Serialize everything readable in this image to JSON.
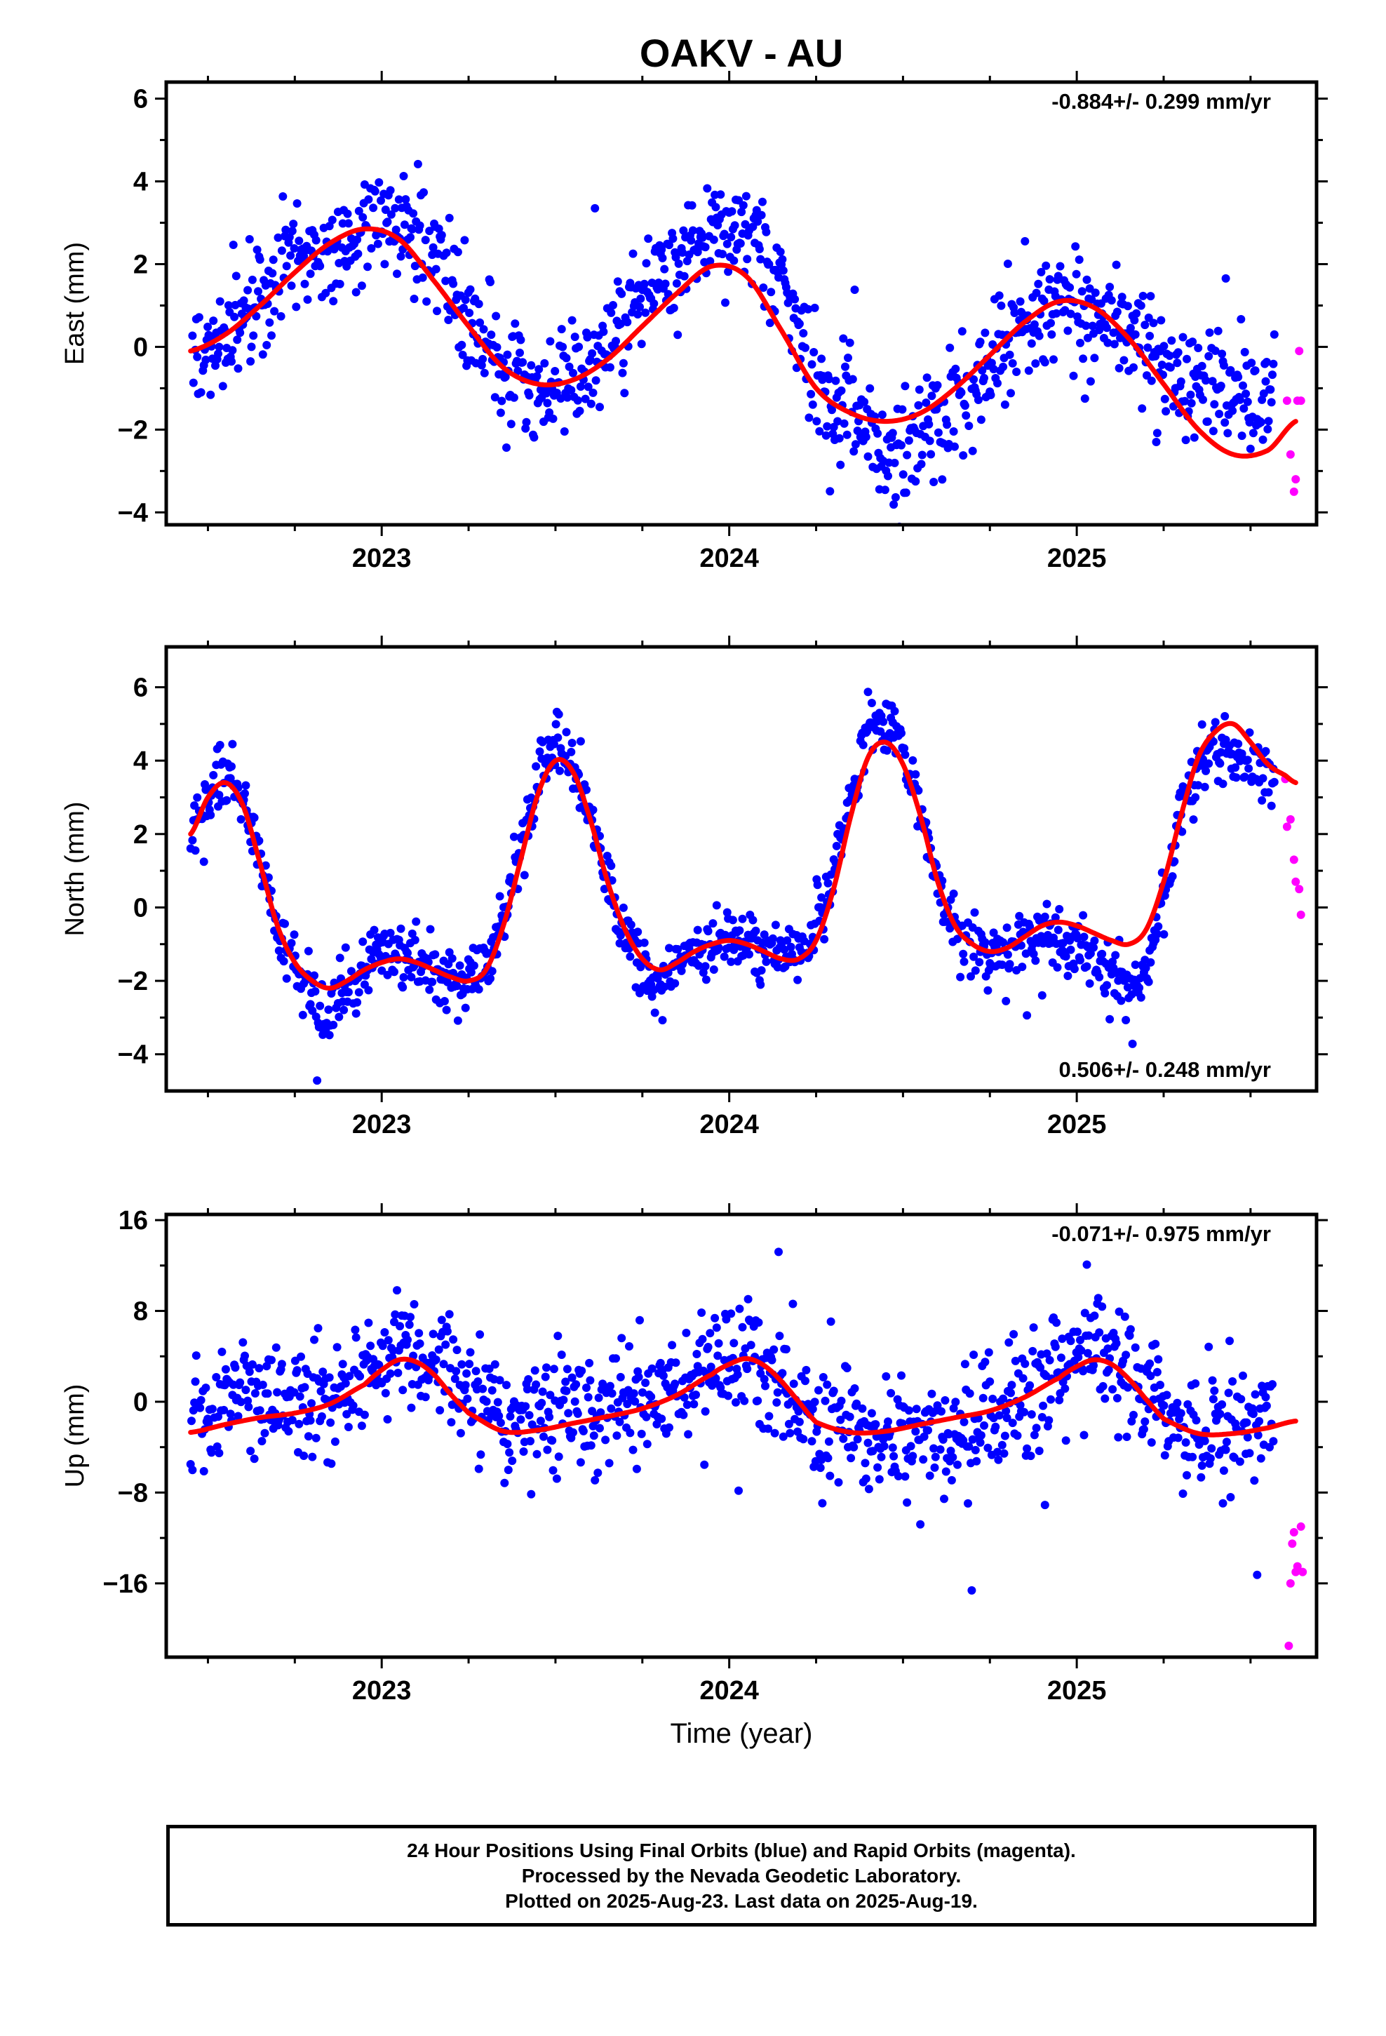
{
  "figure_title": "OAKV - AU",
  "xlabel": "Time (year)",
  "footer": {
    "line1": "24 Hour Positions Using Final Orbits (blue) and Rapid Orbits (magenta).",
    "line2": "Processed by the Nevada Geodetic Laboratory.",
    "line3": "Plotted on 2025-Aug-23. Last data on 2025-Aug-19."
  },
  "colors": {
    "final": "#0000ff",
    "rapid": "#ff00ff",
    "model": "#ff0000",
    "axes": "#000000"
  },
  "chart_data": [
    {
      "type": "scatter",
      "component": "East",
      "ylabel": "East (mm)",
      "rate_label": "-0.884+/- 0.299 mm/yr",
      "rate_position": "top-right",
      "xlim": [
        2022.38,
        2025.69
      ],
      "ylim": [
        -4.3,
        6.4
      ],
      "yticks": [
        -4,
        -2,
        0,
        2,
        4,
        6
      ],
      "ytick_labels": [
        "−4",
        "−2",
        "0",
        "2",
        "4",
        "6"
      ],
      "xticks": [
        2023,
        2024,
        2025
      ],
      "xtick_labels": [
        "2023",
        "2024",
        "2025"
      ],
      "model": {
        "x": [
          2022.45,
          2022.55,
          2022.65,
          2022.75,
          2022.85,
          2022.95,
          2023.05,
          2023.15,
          2023.25,
          2023.35,
          2023.45,
          2023.55,
          2023.65,
          2023.75,
          2023.85,
          2023.95,
          2024.05,
          2024.15,
          2024.25,
          2024.35,
          2024.45,
          2024.55,
          2024.65,
          2024.75,
          2024.85,
          2024.95,
          2025.05,
          2025.15,
          2025.25,
          2025.35,
          2025.45,
          2025.55,
          2025.63
        ],
        "y": [
          -0.1,
          0.3,
          1.0,
          1.8,
          2.5,
          2.85,
          2.6,
          1.6,
          0.5,
          -0.5,
          -0.9,
          -0.8,
          -0.3,
          0.5,
          1.3,
          1.95,
          1.7,
          0.4,
          -1.0,
          -1.6,
          -1.8,
          -1.6,
          -1.0,
          -0.2,
          0.6,
          1.1,
          0.95,
          0.2,
          -0.9,
          -2.0,
          -2.6,
          -2.5,
          -1.8
        ]
      },
      "final_trend": {
        "x": [
          2022.45,
          2022.55,
          2022.65,
          2022.75,
          2022.85,
          2022.95,
          2023.05,
          2023.15,
          2023.25,
          2023.35,
          2023.45,
          2023.55,
          2023.65,
          2023.75,
          2023.85,
          2023.95,
          2024.05,
          2024.15,
          2024.25,
          2024.35,
          2024.45,
          2024.55,
          2024.65,
          2024.75,
          2024.85,
          2024.95,
          2025.05,
          2025.15,
          2025.25,
          2025.35,
          2025.45,
          2025.55
        ],
        "y": [
          -0.3,
          0.2,
          1.3,
          2.4,
          2.2,
          2.9,
          2.8,
          2.3,
          0.6,
          -0.4,
          -1.3,
          -0.6,
          0.0,
          1.2,
          2.2,
          2.7,
          2.7,
          1.5,
          -1.2,
          -1.9,
          -2.7,
          -2.2,
          -1.3,
          -0.6,
          0.4,
          1.2,
          0.6,
          0.6,
          -0.4,
          -0.9,
          -1.0,
          -1.5
        ]
      },
      "final_spread": 0.9,
      "rapid": {
        "x": [
          2025.605,
          2025.615,
          2025.625,
          2025.63,
          2025.635,
          2025.64,
          2025.645
        ],
        "y": [
          -1.3,
          -2.6,
          -3.5,
          -3.2,
          -1.3,
          -0.1,
          -1.3
        ]
      }
    },
    {
      "type": "scatter",
      "component": "North",
      "ylabel": "North (mm)",
      "rate_label": "0.506+/- 0.248 mm/yr",
      "rate_position": "bottom-right",
      "xlim": [
        2022.38,
        2025.69
      ],
      "ylim": [
        -5.0,
        7.1
      ],
      "yticks": [
        -4,
        -2,
        0,
        2,
        4,
        6
      ],
      "ytick_labels": [
        "−4",
        "−2",
        "0",
        "2",
        "4",
        "6"
      ],
      "xticks": [
        2023,
        2024,
        2025
      ],
      "xtick_labels": [
        "2023",
        "2024",
        "2025"
      ],
      "model": {
        "x": [
          2022.45,
          2022.5,
          2022.55,
          2022.6,
          2022.65,
          2022.7,
          2022.75,
          2022.8,
          2022.85,
          2022.9,
          2022.95,
          2023.0,
          2023.05,
          2023.1,
          2023.15,
          2023.2,
          2023.25,
          2023.3,
          2023.35,
          2023.4,
          2023.45,
          2023.5,
          2023.55,
          2023.6,
          2023.65,
          2023.7,
          2023.75,
          2023.8,
          2023.85,
          2023.9,
          2023.95,
          2024.0,
          2024.05,
          2024.1,
          2024.15,
          2024.2,
          2024.25,
          2024.3,
          2024.35,
          2024.4,
          2024.45,
          2024.5,
          2024.55,
          2024.6,
          2024.65,
          2024.7,
          2024.75,
          2024.8,
          2024.85,
          2024.9,
          2024.95,
          2025.0,
          2025.05,
          2025.1,
          2025.15,
          2025.2,
          2025.25,
          2025.3,
          2025.35,
          2025.4,
          2025.45,
          2025.5,
          2025.55,
          2025.6,
          2025.63
        ],
        "y": [
          2.0,
          3.0,
          3.4,
          2.8,
          1.2,
          -0.5,
          -1.5,
          -2.0,
          -2.2,
          -2.0,
          -1.7,
          -1.5,
          -1.4,
          -1.5,
          -1.7,
          -1.9,
          -2.0,
          -1.7,
          -0.5,
          1.3,
          3.1,
          4.0,
          3.7,
          2.4,
          0.7,
          -0.6,
          -1.4,
          -1.7,
          -1.5,
          -1.2,
          -1.0,
          -0.9,
          -1.0,
          -1.2,
          -1.4,
          -1.4,
          -0.9,
          0.5,
          2.5,
          4.1,
          4.5,
          3.9,
          2.5,
          0.7,
          -0.5,
          -1.0,
          -1.2,
          -1.1,
          -0.8,
          -0.5,
          -0.4,
          -0.5,
          -0.7,
          -0.9,
          -1.0,
          -0.6,
          0.7,
          2.5,
          4.1,
          4.8,
          5.0,
          4.5,
          3.9,
          3.6,
          3.4
        ]
      },
      "final_trend": {
        "x": [
          2022.45,
          2022.5,
          2022.55,
          2022.6,
          2022.65,
          2022.7,
          2022.75,
          2022.8,
          2022.85,
          2022.9,
          2022.95,
          2023.0,
          2023.05,
          2023.1,
          2023.15,
          2023.2,
          2023.25,
          2023.3,
          2023.35,
          2023.4,
          2023.45,
          2023.5,
          2023.55,
          2023.6,
          2023.65,
          2023.7,
          2023.75,
          2023.8,
          2023.85,
          2023.9,
          2023.95,
          2024.0,
          2024.05,
          2024.1,
          2024.15,
          2024.2,
          2024.25,
          2024.3,
          2024.35,
          2024.4,
          2024.45,
          2024.5,
          2024.55,
          2024.6,
          2024.65,
          2024.7,
          2024.75,
          2024.8,
          2024.85,
          2024.9,
          2024.95,
          2025.0,
          2025.05,
          2025.1,
          2025.15,
          2025.2,
          2025.25,
          2025.3,
          2025.35,
          2025.4,
          2025.45,
          2025.5,
          2025.55
        ],
        "y": [
          2.0,
          3.0,
          3.6,
          3.0,
          1.2,
          -0.6,
          -1.8,
          -2.6,
          -3.0,
          -2.0,
          -1.6,
          -1.3,
          -1.2,
          -1.5,
          -1.7,
          -1.9,
          -2.0,
          -1.6,
          -0.4,
          1.6,
          3.6,
          4.6,
          3.8,
          2.4,
          0.6,
          -0.7,
          -1.7,
          -2.0,
          -1.6,
          -1.3,
          -1.0,
          -0.9,
          -0.9,
          -1.2,
          -1.3,
          -1.2,
          -0.6,
          0.8,
          3.0,
          4.9,
          5.3,
          4.3,
          2.6,
          0.8,
          -0.7,
          -1.3,
          -1.4,
          -1.2,
          -1.0,
          -0.8,
          -1.0,
          -1.2,
          -1.5,
          -1.9,
          -2.2,
          -1.7,
          0.2,
          2.6,
          3.9,
          4.2,
          4.1,
          3.8,
          3.6
        ]
      },
      "final_spread": 0.55,
      "rapid": {
        "x": [
          2025.6,
          2025.605,
          2025.615,
          2025.625,
          2025.63,
          2025.64,
          2025.645
        ],
        "y": [
          3.5,
          2.2,
          2.4,
          1.3,
          0.7,
          0.5,
          -0.2
        ]
      }
    },
    {
      "type": "scatter",
      "component": "Up",
      "ylabel": "Up (mm)",
      "rate_label": "-0.071+/- 0.975 mm/yr",
      "rate_position": "top-right",
      "xlim": [
        2022.38,
        2025.69
      ],
      "ylim": [
        -22.5,
        16.5
      ],
      "yticks": [
        -16,
        -8,
        0,
        8,
        16
      ],
      "ytick_labels": [
        "−16",
        "−8",
        "0",
        "8",
        "16"
      ],
      "xticks": [
        2023,
        2024,
        2025
      ],
      "xtick_labels": [
        "2023",
        "2024",
        "2025"
      ],
      "model": {
        "x": [
          2022.45,
          2022.55,
          2022.65,
          2022.75,
          2022.85,
          2022.95,
          2023.0,
          2023.05,
          2023.1,
          2023.15,
          2023.2,
          2023.25,
          2023.35,
          2023.45,
          2023.55,
          2023.65,
          2023.75,
          2023.85,
          2023.95,
          2024.0,
          2024.05,
          2024.1,
          2024.15,
          2024.2,
          2024.25,
          2024.35,
          2024.45,
          2024.55,
          2024.65,
          2024.75,
          2024.85,
          2024.95,
          2025.0,
          2025.05,
          2025.1,
          2025.15,
          2025.2,
          2025.25,
          2025.35,
          2025.45,
          2025.55,
          2025.63
        ],
        "y": [
          -2.7,
          -2.0,
          -1.4,
          -1.0,
          -0.2,
          1.5,
          2.8,
          3.7,
          3.5,
          2.4,
          0.6,
          -1.0,
          -2.6,
          -2.5,
          -1.9,
          -1.3,
          -0.6,
          0.6,
          2.4,
          3.3,
          3.8,
          3.2,
          1.8,
          0.0,
          -1.8,
          -2.7,
          -2.6,
          -2.0,
          -1.4,
          -0.8,
          0.4,
          2.1,
          3.1,
          3.7,
          3.3,
          2.0,
          0.2,
          -1.5,
          -2.8,
          -2.8,
          -2.3,
          -1.7
        ]
      },
      "final_trend": {
        "x": [
          2022.45,
          2022.55,
          2022.65,
          2022.75,
          2022.85,
          2022.95,
          2023.05,
          2023.15,
          2023.25,
          2023.35,
          2023.45,
          2023.55,
          2023.65,
          2023.75,
          2023.85,
          2023.95,
          2024.05,
          2024.15,
          2024.25,
          2024.35,
          2024.45,
          2024.55,
          2024.65,
          2024.75,
          2024.85,
          2024.95,
          2025.05,
          2025.15,
          2025.25,
          2025.35,
          2025.45,
          2025.55
        ],
        "y": [
          -1.5,
          0.5,
          1.0,
          0.5,
          0.0,
          2.0,
          4.0,
          3.5,
          1.5,
          -2.5,
          -1.5,
          -1.0,
          -0.8,
          0.0,
          1.0,
          3.0,
          4.5,
          1.5,
          -3.0,
          -2.5,
          -3.0,
          -3.5,
          -2.5,
          -1.5,
          0.5,
          2.5,
          4.5,
          3.0,
          -1.0,
          -3.0,
          -2.5,
          -2.0
        ]
      },
      "final_spread": 3.3,
      "rapid": {
        "x": [
          2025.61,
          2025.615,
          2025.62,
          2025.625,
          2025.63,
          2025.635,
          2025.645,
          2025.65
        ],
        "y": [
          -21.5,
          -16.0,
          -12.5,
          -11.5,
          -15.0,
          -14.5,
          -11.0,
          -15.0
        ]
      }
    }
  ]
}
